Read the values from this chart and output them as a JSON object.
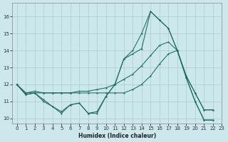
{
  "xlabel": "Humidex (Indice chaleur)",
  "background_color": "#cce8ec",
  "grid_color": "#aacccc",
  "line_color": "#1a6b5e",
  "xlim": [
    -0.5,
    23
  ],
  "ylim": [
    9.7,
    16.8
  ],
  "yticks": [
    10,
    11,
    12,
    13,
    14,
    15,
    16
  ],
  "xticks": [
    0,
    1,
    2,
    3,
    4,
    5,
    6,
    7,
    8,
    9,
    10,
    11,
    12,
    13,
    14,
    15,
    16,
    17,
    18,
    19,
    20,
    21,
    22,
    23
  ],
  "line1_x": [
    0,
    1,
    2,
    3,
    4,
    5,
    6,
    7,
    8,
    9,
    10,
    11,
    12,
    13,
    14,
    15,
    16,
    17,
    18,
    19,
    20,
    21,
    22
  ],
  "line1_y": [
    12.0,
    11.4,
    11.5,
    11.0,
    10.7,
    10.3,
    10.8,
    10.9,
    10.3,
    10.3,
    11.3,
    12.0,
    13.5,
    13.8,
    14.1,
    16.3,
    15.8,
    15.3,
    14.0,
    12.4,
    11.0,
    9.9,
    9.9
  ],
  "line2_x": [
    0,
    1,
    2,
    3,
    4,
    5,
    6,
    7,
    8,
    9,
    10,
    11,
    12,
    13,
    14,
    15,
    16,
    17,
    18,
    19,
    20,
    21,
    22
  ],
  "line2_y": [
    12.0,
    11.4,
    11.5,
    11.1,
    10.7,
    10.4,
    10.8,
    10.9,
    10.3,
    10.4,
    11.3,
    12.0,
    13.5,
    14.0,
    15.0,
    16.3,
    15.8,
    15.3,
    14.0,
    12.4,
    11.0,
    9.9,
    9.9
  ],
  "line3_x": [
    0,
    1,
    2,
    3,
    4,
    5,
    6,
    7,
    8,
    9,
    10,
    11,
    12,
    13,
    14,
    15,
    16,
    17,
    18,
    19,
    20,
    21,
    22
  ],
  "line3_y": [
    12.0,
    11.5,
    11.5,
    11.5,
    11.5,
    11.5,
    11.5,
    11.6,
    11.6,
    11.7,
    11.8,
    12.0,
    12.3,
    12.6,
    13.1,
    13.7,
    14.3,
    14.5,
    14.0,
    12.5,
    11.5,
    10.5,
    10.5
  ],
  "line4_x": [
    0,
    1,
    2,
    3,
    4,
    5,
    6,
    7,
    8,
    9,
    10,
    11,
    12,
    13,
    14,
    15,
    16,
    17,
    18,
    19,
    20,
    21,
    22
  ],
  "line4_y": [
    12.0,
    11.5,
    11.6,
    11.5,
    11.5,
    11.5,
    11.5,
    11.5,
    11.5,
    11.5,
    11.5,
    11.5,
    11.5,
    11.7,
    12.0,
    12.5,
    13.2,
    13.8,
    14.0,
    12.5,
    11.5,
    10.5,
    10.5
  ]
}
